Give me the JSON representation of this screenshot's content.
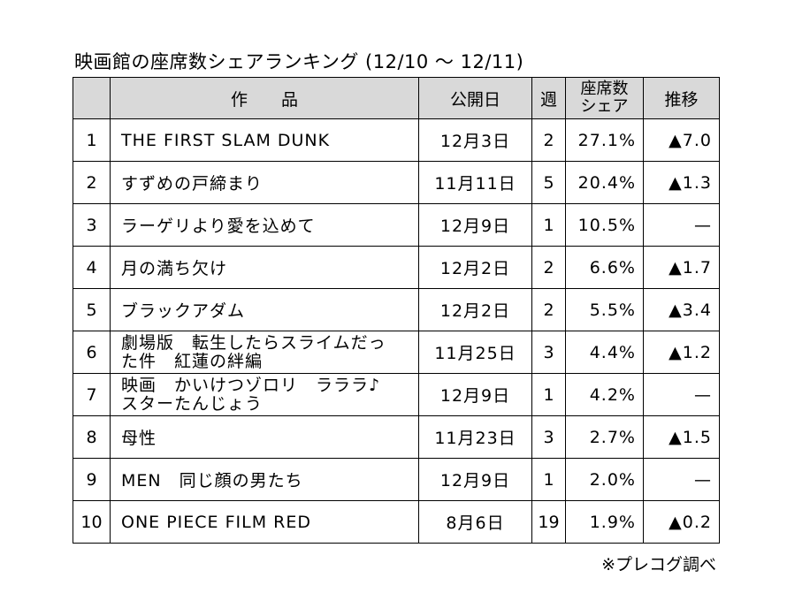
{
  "title": "映画館の座席数シェアランキング (12/10 ～ 12/11)",
  "headers": {
    "rank": "",
    "work": "作品",
    "release": "公開日",
    "week": "週",
    "share_line1": "座席数",
    "share_line2": "シェア",
    "trend": "推移"
  },
  "rows": [
    {
      "rank": "1",
      "title_lines": [
        "THE FIRST SLAM DUNK"
      ],
      "release": "12月3日",
      "week": "2",
      "share": "27.1%",
      "trend": "▲7.0"
    },
    {
      "rank": "2",
      "title_lines": [
        "すずめの戸締まり"
      ],
      "release": "11月11日",
      "week": "5",
      "share": "20.4%",
      "trend": "▲1.3"
    },
    {
      "rank": "3",
      "title_lines": [
        "ラーゲリより愛を込めて"
      ],
      "release": "12月9日",
      "week": "1",
      "share": "10.5%",
      "trend": "—"
    },
    {
      "rank": "4",
      "title_lines": [
        "月の満ち欠け"
      ],
      "release": "12月2日",
      "week": "2",
      "share": "6.6%",
      "trend": "▲1.7"
    },
    {
      "rank": "5",
      "title_lines": [
        "ブラックアダム"
      ],
      "release": "12月2日",
      "week": "2",
      "share": "5.5%",
      "trend": "▲3.4"
    },
    {
      "rank": "6",
      "title_lines": [
        "劇場版　転生したらスライムだっ",
        "た件　紅蓮の絆編"
      ],
      "release": "11月25日",
      "week": "3",
      "share": "4.4%",
      "trend": "▲1.2"
    },
    {
      "rank": "7",
      "title_lines": [
        "映画　かいけつゾロリ　ラララ♪",
        "スターたんじょう"
      ],
      "release": "12月9日",
      "week": "1",
      "share": "4.2%",
      "trend": "—"
    },
    {
      "rank": "8",
      "title_lines": [
        "母性"
      ],
      "release": "11月23日",
      "week": "3",
      "share": "2.7%",
      "trend": "▲1.5"
    },
    {
      "rank": "9",
      "title_lines": [
        "MEN　同じ顔の男たち"
      ],
      "release": "12月9日",
      "week": "1",
      "share": "2.0%",
      "trend": "—"
    },
    {
      "rank": "10",
      "title_lines": [
        "ONE PIECE FILM RED"
      ],
      "release": "8月6日",
      "week": "19",
      "share": "1.9%",
      "trend": "▲0.2"
    }
  ],
  "footnote": "※プレコグ調べ"
}
